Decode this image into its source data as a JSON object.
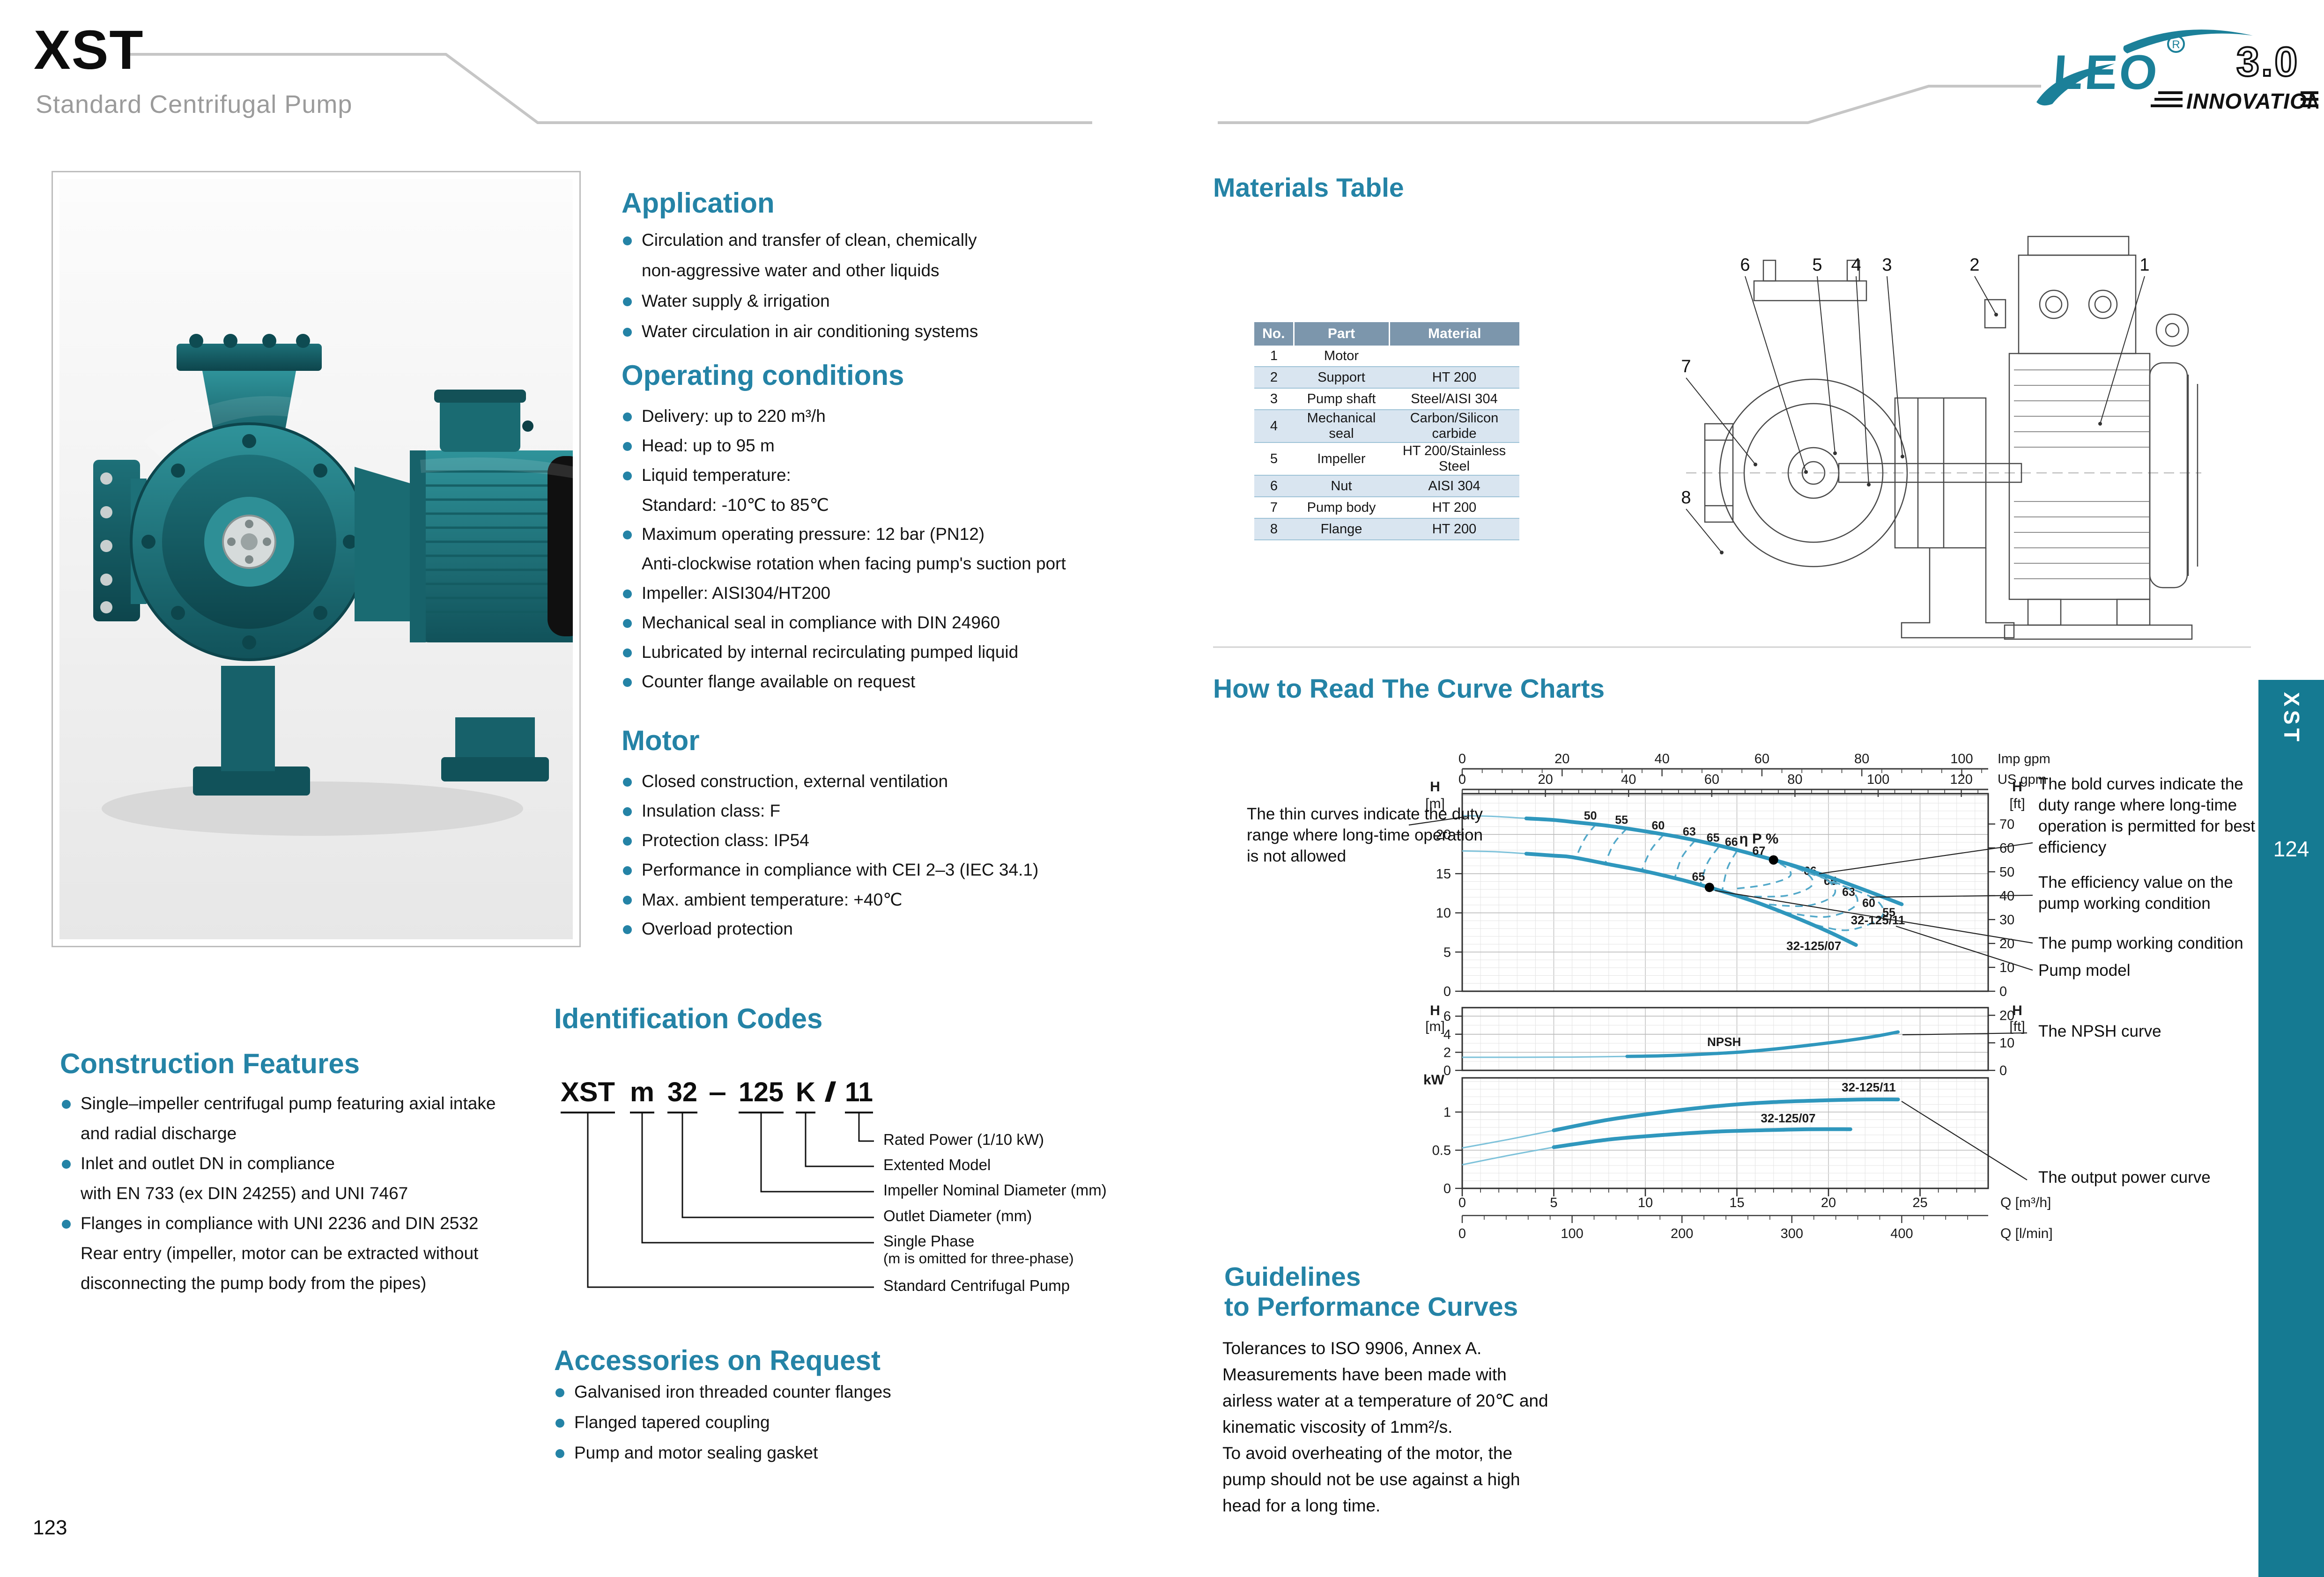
{
  "page": {
    "left_number": "123",
    "right_number": "124"
  },
  "header": {
    "model": "XST",
    "subtitle": "Standard Centrifugal Pump",
    "side_tab": "XST"
  },
  "logo": {
    "brand": "LEO",
    "registered": "R",
    "edition": "3.0",
    "tagline": "INNOVATION"
  },
  "colors": {
    "accent": "#2483a6",
    "sidebar_teal": "#157a92",
    "curve_blue": "#2f97bd",
    "table_header_bg": "#7c96ac",
    "table_alt_row": "#d9e5f0",
    "logo_teal": "#1b8099"
  },
  "left_page": {
    "application": {
      "title": "Application",
      "items": [
        {
          "b": 1,
          "t": "Circulation and transfer of clean, chemically"
        },
        {
          "b": 0,
          "t": "non-aggressive water and other liquids"
        },
        {
          "b": 1,
          "t": "Water supply & irrigation"
        },
        {
          "b": 1,
          "t": "Water circulation in air conditioning systems"
        }
      ]
    },
    "operating": {
      "title": "Operating conditions",
      "items": [
        {
          "b": 1,
          "t": "Delivery: up to 220 m³/h"
        },
        {
          "b": 1,
          "t": "Head: up to 95 m"
        },
        {
          "b": 1,
          "t": "Liquid temperature:"
        },
        {
          "b": 0,
          "t": "Standard:  -10℃ to 85℃"
        },
        {
          "b": 1,
          "t": "Maximum operating pressure: 12 bar (PN12)"
        },
        {
          "b": 0,
          "t": "Anti-clockwise rotation when facing pump's suction port"
        },
        {
          "b": 1,
          "t": "Impeller: AISI304/HT200"
        },
        {
          "b": 1,
          "t": "Mechanical seal in compliance with DIN 24960"
        },
        {
          "b": 1,
          "t": "Lubricated by internal recirculating pumped liquid"
        },
        {
          "b": 1,
          "t": "Counter flange available on request"
        }
      ]
    },
    "motor": {
      "title": "Motor",
      "items": [
        {
          "b": 1,
          "t": "Closed construction, external ventilation"
        },
        {
          "b": 1,
          "t": "Insulation class:  F"
        },
        {
          "b": 1,
          "t": "Protection class: IP54"
        },
        {
          "b": 1,
          "t": "Performance in compliance with CEI 2–3 (IEC 34.1)"
        },
        {
          "b": 1,
          "t": "Max. ambient temperature: +40℃"
        },
        {
          "b": 1,
          "t": "Overload protection"
        }
      ]
    },
    "construction": {
      "title": "Construction Features",
      "items": [
        {
          "b": 1,
          "t": "Single–impeller centrifugal pump featuring axial intake"
        },
        {
          "b": 0,
          "t": "and radial discharge"
        },
        {
          "b": 1,
          "t": "Inlet and outlet DN in compliance"
        },
        {
          "b": 0,
          "t": "with EN 733 (ex DIN 24255) and UNI 7467"
        },
        {
          "b": 1,
          "t": "Flanges in compliance with UNI 2236 and DIN 2532"
        },
        {
          "b": 0,
          "t": "Rear entry (impeller, motor can be extracted without"
        },
        {
          "b": 0,
          "t": "disconnecting the pump body from the pipes)"
        }
      ]
    },
    "identification": {
      "title": "Identification Codes",
      "code_segments": [
        {
          "t": "XST",
          "u": 1
        },
        {
          "t": "m",
          "u": 1
        },
        {
          "t": "32",
          "u": 1
        },
        {
          "t": "–",
          "u": 0
        },
        {
          "t": "125",
          "u": 1
        },
        {
          "t": "K",
          "u": 1
        },
        {
          "t": "/",
          "u": 0
        },
        {
          "t": "11",
          "u": 1
        }
      ],
      "labels": [
        {
          "text": "Rated Power (1/10 kW)",
          "seg": "11"
        },
        {
          "text": "Extented Model",
          "seg": "K"
        },
        {
          "text": "Impeller Nominal Diameter (mm)",
          "seg": "125"
        },
        {
          "text": "Outlet Diameter (mm)",
          "seg": "32"
        },
        {
          "text": "Single Phase",
          "sub": "(m is omitted for three-phase)",
          "seg": "m"
        },
        {
          "text": "Standard Centrifugal Pump",
          "seg": "XST"
        }
      ]
    },
    "accessories": {
      "title": "Accessories on Request",
      "items": [
        {
          "b": 1,
          "t": "Galvanised iron threaded counter flanges"
        },
        {
          "b": 1,
          "t": "Flanged tapered coupling"
        },
        {
          "b": 1,
          "t": "Pump and motor sealing gasket"
        }
      ]
    }
  },
  "right_page": {
    "materials": {
      "title": "Materials Table",
      "columns": [
        "No.",
        "Part",
        "Material"
      ],
      "rows": [
        [
          "1",
          "Motor",
          ""
        ],
        [
          "2",
          "Support",
          "HT 200"
        ],
        [
          "3",
          "Pump shaft",
          "Steel/AISI 304"
        ],
        [
          "4",
          "Mechanical seal",
          "Carbon/Silicon carbide"
        ],
        [
          "5",
          "Impeller",
          "HT 200/Stainless Steel"
        ],
        [
          "6",
          "Nut",
          "AISI 304"
        ],
        [
          "7",
          "Pump body",
          "HT 200"
        ],
        [
          "8",
          "Flange",
          "HT 200"
        ]
      ]
    },
    "drawing_callouts": [
      "1",
      "2",
      "3",
      "4",
      "5",
      "6",
      "7",
      "8"
    ],
    "how_to_read": {
      "title": "How  to Read The Curve Charts",
      "annotations": {
        "thin": "The thin curves indicate the duty\nrange where long-time operation\nis not allowed",
        "bold": "The bold curves indicate the\nduty range where long-time\noperation is permitted for best\nefficiency",
        "efficiency": "The efficiency value on the\npump working condition",
        "working": "The pump working condition",
        "model": "Pump model",
        "npsh": "The NPSH curve",
        "power": "The output power curve"
      }
    },
    "guidelines": {
      "title": "Guidelines\nto Performance Curves",
      "body": "Tolerances to ISO 9906, Annex A.\nMeasurements have been made with\nairless water at a temperature of 20℃ and\nkinematic viscosity of 1mm²/s.\nTo avoid overheating of the motor, the\npump should not be use against a high\nhead for a long time."
    }
  },
  "chart_data": [
    {
      "id": "head-flow",
      "type": "line",
      "title": "",
      "x_axes_top": [
        {
          "unit": "Imp gpm",
          "ticks": [
            0,
            20,
            40,
            60,
            80,
            100
          ],
          "m3h_per_unit": 0.27276
        },
        {
          "unit": "US gpm",
          "ticks": [
            0,
            20,
            40,
            60,
            80,
            100,
            120
          ],
          "m3h_per_unit": 0.22712
        }
      ],
      "x_range_m3h": [
        0,
        28.7
      ],
      "y_axis_left": {
        "label": "H",
        "unit": "[m]",
        "ticks": [
          0,
          5,
          10,
          15,
          20
        ],
        "range": [
          0,
          25.2
        ]
      },
      "y_axis_right": {
        "label": "H",
        "unit": "[ft]",
        "ticks": [
          0,
          10,
          20,
          30,
          40,
          50,
          60,
          70
        ]
      },
      "efficiency_symbol": "η P %",
      "efficiency_symbol_pos": [
        16.2,
        18.85
      ],
      "series": [
        {
          "name": "32-125/11",
          "label_pos": [
            22.7,
            8.55
          ],
          "thin": [
            [
              0,
              22.4
            ],
            [
              1.8,
              22.3
            ],
            [
              3.5,
              22.05
            ]
          ],
          "bold": [
            [
              3.5,
              22.05
            ],
            [
              5,
              21.85
            ],
            [
              6,
              21.6
            ],
            [
              8,
              21.1
            ],
            [
              10,
              20.4
            ],
            [
              12,
              19.6
            ],
            [
              14,
              18.6
            ],
            [
              16,
              17.4
            ],
            [
              18,
              16.1
            ],
            [
              20,
              14.6
            ],
            [
              22,
              12.9
            ],
            [
              24,
              11.1
            ]
          ]
        },
        {
          "name": "32-125/07",
          "label_pos": [
            19.2,
            5.25
          ],
          "thin": [
            [
              0,
              17.9
            ],
            [
              1.8,
              17.8
            ],
            [
              3.5,
              17.55
            ]
          ],
          "bold": [
            [
              3.5,
              17.55
            ],
            [
              5,
              17.3
            ],
            [
              6,
              17.1
            ],
            [
              8,
              16.2
            ],
            [
              10,
              15.3
            ],
            [
              12,
              14.2
            ],
            [
              14,
              12.9
            ],
            [
              16,
              11.4
            ],
            [
              18,
              9.6
            ],
            [
              20,
              7.6
            ],
            [
              21.5,
              5.9
            ]
          ]
        }
      ],
      "efficiency_left": [
        {
          "value": "50",
          "label_pos": [
            7.0,
            21.9
          ],
          "line": [
            [
              7.3,
              21.3
            ],
            [
              6.7,
              19.5
            ],
            [
              6.2,
              17.0
            ]
          ]
        },
        {
          "value": "55",
          "label_pos": [
            8.7,
            21.35
          ],
          "line": [
            [
              9.0,
              20.8
            ],
            [
              8.3,
              18.9
            ],
            [
              7.8,
              16.3
            ]
          ]
        },
        {
          "value": "60",
          "label_pos": [
            10.7,
            20.65
          ],
          "line": [
            [
              11.0,
              20.0
            ],
            [
              10.3,
              18.0
            ],
            [
              9.8,
              15.4
            ]
          ]
        },
        {
          "value": "63",
          "label_pos": [
            12.4,
            19.85
          ],
          "line": [
            [
              12.7,
              19.2
            ],
            [
              12.0,
              17.1
            ],
            [
              11.6,
              14.4
            ]
          ]
        },
        {
          "value": "65",
          "label_pos": [
            13.7,
            19.1
          ],
          "line": [
            [
              14.0,
              18.4
            ],
            [
              13.4,
              16.4
            ],
            [
              13.0,
              13.6
            ]
          ]
        },
        {
          "value": "66",
          "label_pos": [
            14.7,
            18.55
          ],
          "line": [
            [
              15.0,
              17.9
            ],
            [
              14.5,
              15.8
            ],
            [
              14.2,
              12.9
            ]
          ]
        }
      ],
      "efficiency_right": [
        {
          "value": "66",
          "label_pos": [
            19.0,
            14.85
          ],
          "line": [
            [
              16.0,
              17.5
            ],
            [
              17.5,
              16.1
            ],
            [
              17.9,
              14.7
            ],
            [
              16.6,
              13.6
            ],
            [
              14.8,
              13.05
            ]
          ]
        },
        {
          "value": "65",
          "label_pos": [
            20.1,
            13.55
          ],
          "line": [
            [
              16.9,
              16.8
            ],
            [
              18.7,
              15.2
            ],
            [
              19.1,
              13.5
            ],
            [
              17.7,
              12.2
            ],
            [
              15.4,
              12.1
            ]
          ]
        },
        {
          "value": "63",
          "label_pos": [
            21.1,
            12.15
          ],
          "line": [
            [
              17.9,
              16.0
            ],
            [
              19.9,
              14.2
            ],
            [
              20.3,
              12.3
            ],
            [
              18.8,
              10.9
            ],
            [
              16.3,
              11.15
            ]
          ]
        },
        {
          "value": "60",
          "label_pos": [
            22.2,
            10.75
          ],
          "line": [
            [
              18.9,
              15.1
            ],
            [
              21.1,
              13.1
            ],
            [
              21.5,
              11.0
            ],
            [
              19.9,
              9.5
            ],
            [
              17.5,
              10.1
            ]
          ]
        },
        {
          "value": "55",
          "label_pos": [
            23.3,
            9.55
          ],
          "line": [
            [
              20.1,
              14.0
            ],
            [
              22.5,
              11.8
            ],
            [
              22.9,
              9.5
            ],
            [
              21.1,
              7.8
            ],
            [
              19.2,
              8.5
            ]
          ]
        }
      ],
      "working_points": [
        {
          "value": "67",
          "q": 17.0,
          "h": 16.75,
          "label_pos": [
            16.2,
            17.4
          ]
        },
        {
          "value": "65",
          "q": 13.5,
          "h": 13.25,
          "label_pos": [
            12.9,
            14.1
          ]
        }
      ]
    },
    {
      "id": "npsh",
      "type": "line",
      "y_axis_left": {
        "label": "H",
        "unit": "[m]",
        "ticks": [
          0,
          2,
          4,
          6
        ],
        "range": [
          0,
          6.95
        ]
      },
      "y_axis_right": {
        "label": "H",
        "unit": "[ft]",
        "ticks": [
          0,
          10,
          20
        ]
      },
      "series": [
        {
          "name": "NPSH",
          "label_pos": [
            14.3,
            2.7
          ],
          "thin": [
            [
              0,
              1.45
            ],
            [
              3,
              1.45
            ],
            [
              6,
              1.47
            ],
            [
              9,
              1.55
            ]
          ],
          "bold": [
            [
              9,
              1.55
            ],
            [
              11,
              1.62
            ],
            [
              13,
              1.78
            ],
            [
              15,
              2.0
            ],
            [
              17,
              2.35
            ],
            [
              19,
              2.8
            ],
            [
              21,
              3.3
            ],
            [
              22.5,
              3.75
            ],
            [
              23.8,
              4.25
            ]
          ]
        }
      ]
    },
    {
      "id": "power",
      "type": "line",
      "y_axis_left": {
        "label": "kW",
        "ticks": [
          0,
          0.5,
          1
        ],
        "range": [
          0,
          1.45
        ]
      },
      "x_axes_bottom": [
        {
          "unit": "Q [m³/h]",
          "ticks": [
            0,
            5,
            10,
            15,
            20,
            25
          ]
        },
        {
          "unit": "Q [l/min]",
          "ticks": [
            0,
            100,
            200,
            300,
            400
          ],
          "m3h_per_unit": 0.06
        }
      ],
      "series": [
        {
          "name": "32-125/11",
          "label_pos": [
            22.2,
            1.27
          ],
          "thin": [
            [
              0,
              0.53
            ],
            [
              2.5,
              0.64
            ],
            [
              5,
              0.76
            ]
          ],
          "bold": [
            [
              5,
              0.76
            ],
            [
              8,
              0.9
            ],
            [
              11,
              1.0
            ],
            [
              14,
              1.08
            ],
            [
              17,
              1.13
            ],
            [
              20,
              1.155
            ],
            [
              22,
              1.165
            ],
            [
              23.8,
              1.165
            ]
          ]
        },
        {
          "name": "32-125/07",
          "label_pos": [
            17.8,
            0.865
          ],
          "thin": [
            [
              0,
              0.31
            ],
            [
              2.5,
              0.43
            ],
            [
              5,
              0.54
            ]
          ],
          "bold": [
            [
              5,
              0.54
            ],
            [
              8,
              0.64
            ],
            [
              11,
              0.7
            ],
            [
              14,
              0.745
            ],
            [
              17,
              0.765
            ],
            [
              19,
              0.775
            ],
            [
              21.2,
              0.775
            ]
          ]
        }
      ]
    }
  ]
}
